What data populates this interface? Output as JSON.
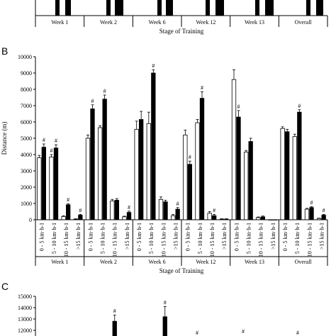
{
  "panels": {
    "a_xlabel": "Stage of Training",
    "a_weeks": [
      "Week 1",
      "Week 2",
      "Week 6",
      "Week 12",
      "Week 13",
      "Overall"
    ],
    "b_letter": "B",
    "c_letter": "C"
  },
  "chart_data": [
    {
      "type": "bar",
      "panel": "B",
      "ylabel": "Distance (m)",
      "xlabel": "Stage of Training",
      "ylim": [
        0,
        10000
      ],
      "yticks": [
        0,
        1000,
        2000,
        3000,
        4000,
        5000,
        6000,
        7000,
        8000,
        9000,
        10000
      ],
      "groups": [
        "Week 1",
        "Week 2",
        "Week 6",
        "Week 12",
        "Week 13",
        "Overall"
      ],
      "categories": [
        "0 - 5 km·h-1",
        "5 - 10 km·h-1",
        "10 - 15 km·h-1",
        ">15 km·h-1"
      ],
      "significance_marker": "#",
      "bars": [
        {
          "group": 0,
          "cat": 0,
          "fill": "white",
          "value": 3800,
          "err": 150,
          "sig": false
        },
        {
          "group": 0,
          "cat": 0,
          "fill": "black",
          "value": 4450,
          "err": 200,
          "sig": true
        },
        {
          "group": 0,
          "cat": 1,
          "fill": "white",
          "value": 3850,
          "err": 150,
          "sig": true
        },
        {
          "group": 0,
          "cat": 1,
          "fill": "black",
          "value": 4400,
          "err": 200,
          "sig": true
        },
        {
          "group": 0,
          "cat": 2,
          "fill": "white",
          "value": 200,
          "err": 50,
          "sig": false
        },
        {
          "group": 0,
          "cat": 2,
          "fill": "black",
          "value": 920,
          "err": 60,
          "sig": true
        },
        {
          "group": 0,
          "cat": 3,
          "fill": "white",
          "value": 40,
          "err": 20,
          "sig": false
        },
        {
          "group": 0,
          "cat": 3,
          "fill": "black",
          "value": 280,
          "err": 50,
          "sig": true
        },
        {
          "group": 1,
          "cat": 0,
          "fill": "white",
          "value": 5000,
          "err": 200,
          "sig": false
        },
        {
          "group": 1,
          "cat": 0,
          "fill": "black",
          "value": 6800,
          "err": 250,
          "sig": true
        },
        {
          "group": 1,
          "cat": 1,
          "fill": "white",
          "value": 5650,
          "err": 120,
          "sig": false
        },
        {
          "group": 1,
          "cat": 1,
          "fill": "black",
          "value": 7400,
          "err": 250,
          "sig": true
        },
        {
          "group": 1,
          "cat": 2,
          "fill": "white",
          "value": 1150,
          "err": 100,
          "sig": false
        },
        {
          "group": 1,
          "cat": 2,
          "fill": "black",
          "value": 1200,
          "err": 100,
          "sig": false
        },
        {
          "group": 1,
          "cat": 3,
          "fill": "white",
          "value": 180,
          "err": 40,
          "sig": false
        },
        {
          "group": 1,
          "cat": 3,
          "fill": "black",
          "value": 450,
          "err": 80,
          "sig": true
        },
        {
          "group": 2,
          "cat": 0,
          "fill": "white",
          "value": 5550,
          "err": 500,
          "sig": false
        },
        {
          "group": 2,
          "cat": 0,
          "fill": "black",
          "value": 6150,
          "err": 500,
          "sig": false
        },
        {
          "group": 2,
          "cat": 1,
          "fill": "white",
          "value": 5900,
          "err": 700,
          "sig": false
        },
        {
          "group": 2,
          "cat": 1,
          "fill": "black",
          "value": 9000,
          "err": 200,
          "sig": true
        },
        {
          "group": 2,
          "cat": 2,
          "fill": "white",
          "value": 1250,
          "err": 150,
          "sig": false
        },
        {
          "group": 2,
          "cat": 2,
          "fill": "black",
          "value": 1100,
          "err": 100,
          "sig": false
        },
        {
          "group": 2,
          "cat": 3,
          "fill": "white",
          "value": 250,
          "err": 80,
          "sig": false
        },
        {
          "group": 2,
          "cat": 3,
          "fill": "black",
          "value": 650,
          "err": 100,
          "sig": true
        },
        {
          "group": 3,
          "cat": 0,
          "fill": "white",
          "value": 5200,
          "err": 300,
          "sig": false
        },
        {
          "group": 3,
          "cat": 0,
          "fill": "black",
          "value": 3400,
          "err": 200,
          "sig": true
        },
        {
          "group": 3,
          "cat": 1,
          "fill": "white",
          "value": 5950,
          "err": 200,
          "sig": false
        },
        {
          "group": 3,
          "cat": 1,
          "fill": "black",
          "value": 7450,
          "err": 400,
          "sig": true
        },
        {
          "group": 3,
          "cat": 2,
          "fill": "white",
          "value": 400,
          "err": 100,
          "sig": false
        },
        {
          "group": 3,
          "cat": 2,
          "fill": "black",
          "value": 250,
          "err": 80,
          "sig": true
        },
        {
          "group": 3,
          "cat": 3,
          "fill": "white",
          "value": 40,
          "err": 20,
          "sig": false
        },
        {
          "group": 3,
          "cat": 3,
          "fill": "black",
          "value": 40,
          "err": 20,
          "sig": false
        },
        {
          "group": 4,
          "cat": 0,
          "fill": "white",
          "value": 8600,
          "err": 600,
          "sig": false
        },
        {
          "group": 4,
          "cat": 0,
          "fill": "black",
          "value": 6300,
          "err": 400,
          "sig": true
        },
        {
          "group": 4,
          "cat": 1,
          "fill": "white",
          "value": 4150,
          "err": 100,
          "sig": false
        },
        {
          "group": 4,
          "cat": 1,
          "fill": "black",
          "value": 4800,
          "err": 200,
          "sig": false
        },
        {
          "group": 4,
          "cat": 2,
          "fill": "white",
          "value": 130,
          "err": 40,
          "sig": false
        },
        {
          "group": 4,
          "cat": 2,
          "fill": "black",
          "value": 180,
          "err": 50,
          "sig": false
        },
        {
          "group": 4,
          "cat": 3,
          "fill": "white",
          "value": 0,
          "err": 0,
          "sig": false
        },
        {
          "group": 4,
          "cat": 3,
          "fill": "black",
          "value": 0,
          "err": 0,
          "sig": false
        },
        {
          "group": 5,
          "cat": 0,
          "fill": "white",
          "value": 5600,
          "err": 100,
          "sig": false
        },
        {
          "group": 5,
          "cat": 0,
          "fill": "black",
          "value": 5400,
          "err": 150,
          "sig": false
        },
        {
          "group": 5,
          "cat": 1,
          "fill": "white",
          "value": 5100,
          "err": 150,
          "sig": false
        },
        {
          "group": 5,
          "cat": 1,
          "fill": "black",
          "value": 6600,
          "err": 150,
          "sig": true
        },
        {
          "group": 5,
          "cat": 2,
          "fill": "white",
          "value": 650,
          "err": 50,
          "sig": false
        },
        {
          "group": 5,
          "cat": 2,
          "fill": "black",
          "value": 750,
          "err": 50,
          "sig": true
        },
        {
          "group": 5,
          "cat": 3,
          "fill": "white",
          "value": 80,
          "err": 20,
          "sig": false
        },
        {
          "group": 5,
          "cat": 3,
          "fill": "black",
          "value": 280,
          "err": 50,
          "sig": true
        }
      ]
    },
    {
      "type": "bar",
      "panel": "C",
      "ylim": [
        11500,
        15000
      ],
      "yticks": [
        12000,
        13000,
        14000,
        15000
      ],
      "visible_bars": [
        {
          "label_group": "Week 2",
          "value": 12800,
          "err": 550,
          "sig": true
        },
        {
          "label_group": "Week 6",
          "value": 13200,
          "err": 900,
          "sig": true
        }
      ],
      "significance_marker": "#"
    }
  ]
}
